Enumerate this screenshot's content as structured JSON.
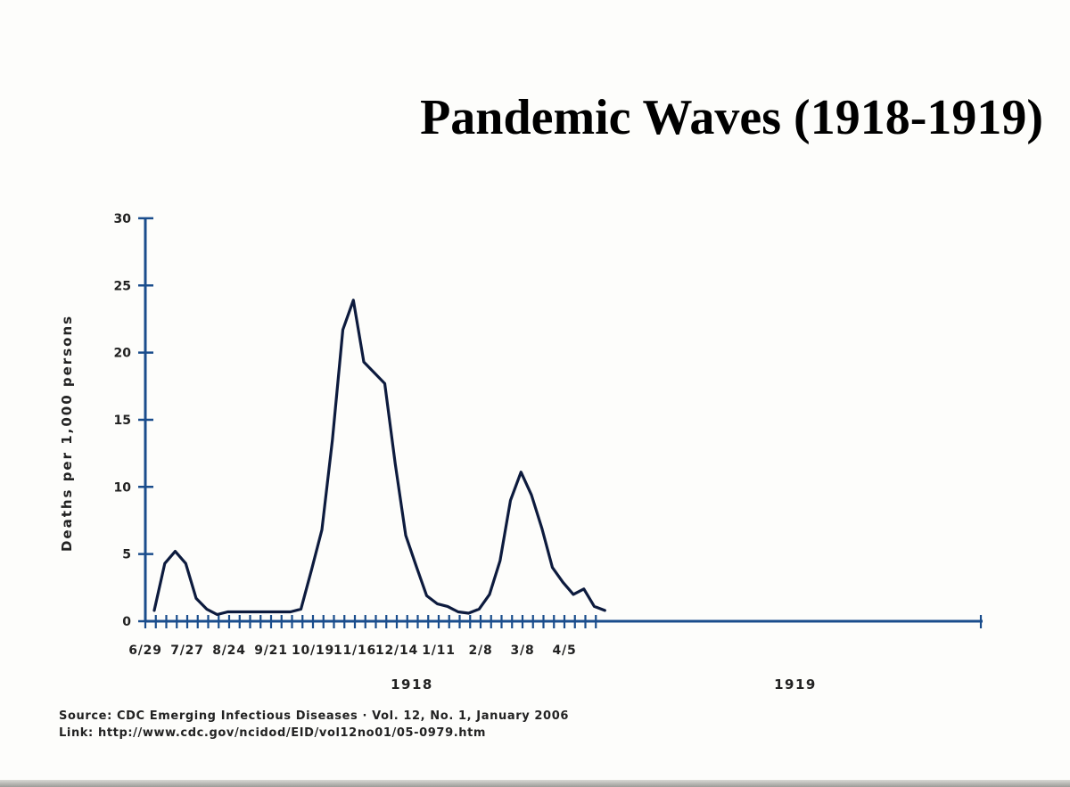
{
  "title": "Pandemic Waves (1918-1919)",
  "chart_data": {
    "type": "line",
    "ylabel": "Deaths per 1,000 persons",
    "ylim": [
      0,
      30
    ],
    "y_ticks": [
      "0",
      "5",
      "10",
      "15",
      "20",
      "25",
      "30"
    ],
    "x_tick_labels": [
      "6/29",
      "7/27",
      "8/24",
      "9/21",
      "10/19",
      "11/16",
      "12/14",
      "1/11",
      "2/8",
      "3/8",
      "4/5"
    ],
    "year_labels": [
      "1918",
      "1919"
    ],
    "line_color": "#0d1b3e",
    "axis_color": "#1a4d8c",
    "series": [
      {
        "x": [
          "6/29",
          "7/6",
          "7/13",
          "7/20",
          "7/27",
          "8/3",
          "8/10",
          "8/17",
          "8/24",
          "8/31",
          "9/7",
          "9/14",
          "9/21",
          "9/28",
          "10/5",
          "10/12",
          "10/19",
          "10/26",
          "11/2",
          "11/9",
          "11/16",
          "11/23",
          "11/30",
          "12/7",
          "12/14",
          "12/21",
          "12/28",
          "1/4",
          "1/11",
          "1/18",
          "1/25",
          "2/1",
          "2/8",
          "2/15",
          "2/22",
          "3/1",
          "3/8",
          "3/15",
          "3/22",
          "3/29",
          "4/5",
          "4/12",
          "4/19",
          "4/26"
        ],
        "values": [
          0.8,
          4.3,
          5.2,
          4.3,
          1.7,
          0.9,
          0.5,
          0.7,
          0.7,
          0.7,
          0.7,
          0.7,
          0.7,
          0.7,
          0.9,
          3.8,
          6.8,
          13.5,
          21.7,
          23.9,
          19.3,
          18.5,
          17.7,
          11.7,
          6.4,
          4.1,
          1.9,
          1.3,
          1.1,
          0.7,
          0.6,
          0.9,
          2.0,
          4.5,
          9.0,
          11.1,
          9.4,
          6.9,
          4.0,
          2.9,
          2.0,
          2.4,
          1.1,
          0.8
        ]
      }
    ]
  },
  "source": {
    "line1": "Source: CDC Emerging Infectious Diseases · Vol. 12, No. 1, January 2006",
    "line2": "Link: http://www.cdc.gov/ncidod/EID/vol12no01/05-0979.htm"
  }
}
